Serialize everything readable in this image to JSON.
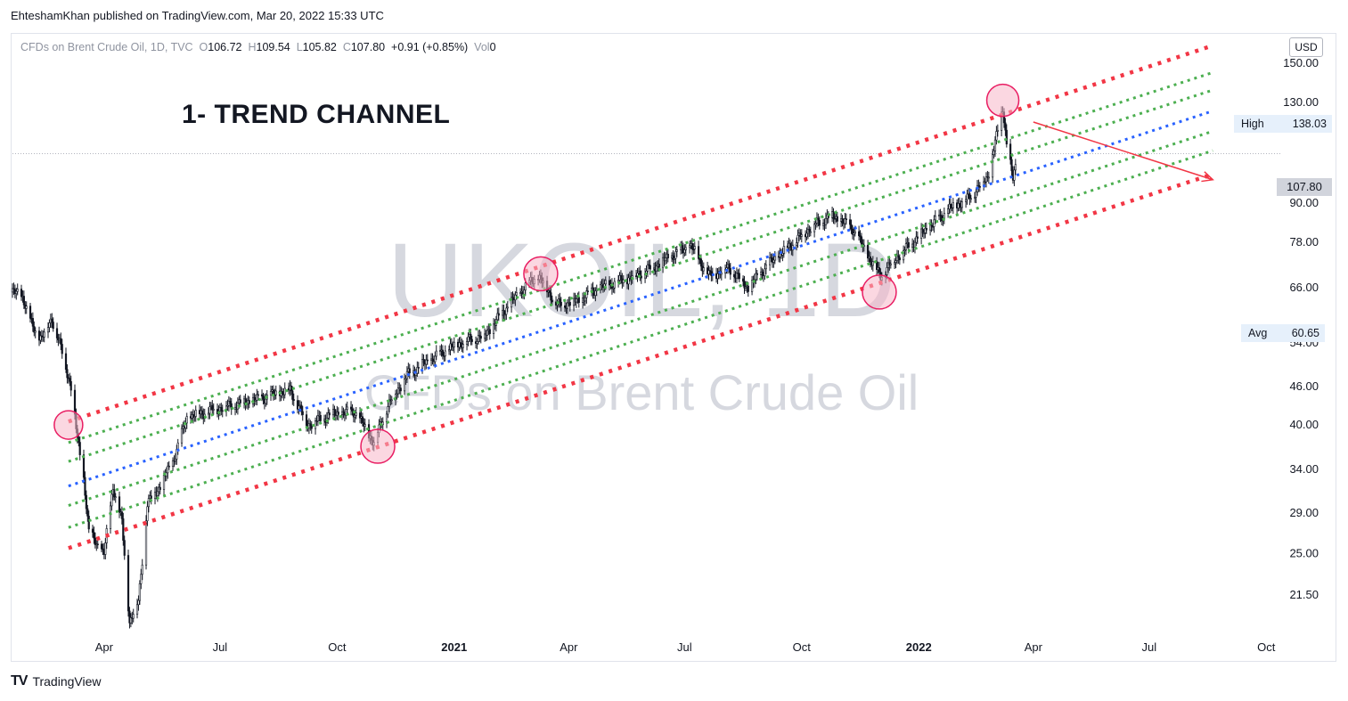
{
  "publisher": "EhteshamKhan published on TradingView.com, Mar 20, 2022 15:33 UTC",
  "legend": {
    "symbol": "CFDs on Brent Crude Oil, 1D, TVC",
    "open_label": "O",
    "open": "106.72",
    "high_label": "H",
    "high": "109.54",
    "low_label": "L",
    "low": "105.82",
    "close_label": "C",
    "close": "107.80",
    "change": "+0.91 (+0.85%)",
    "vol_label": "Vol",
    "vol": "0"
  },
  "annotation_title": "1- TREND CHANNEL",
  "watermark": {
    "line1": "UKOIL, 1D",
    "line2": "CFDs on Brent Crude Oil"
  },
  "currency": "USD",
  "price_tags": {
    "high_label": "High",
    "high_value": "138.03",
    "avg_label": "Avg",
    "avg_value": "60.65",
    "last_value": "107.80"
  },
  "footer": {
    "logo": "TV",
    "brand": "TradingView"
  },
  "colors": {
    "channel_outer": "#f23645",
    "channel_inner": "#4caf50",
    "channel_mid": "#2962ff",
    "candles": "#131722",
    "circle_fill": "#f7b6c8",
    "circle_stroke": "#e91e63",
    "arrow": "#f23645",
    "watermark": "#d1d4dc"
  },
  "chart_data": {
    "type": "candlestick",
    "title": "",
    "y_scale": "log",
    "ylim": [
      18.5,
      167
    ],
    "y_ticks": [
      {
        "value": 21.5,
        "label": "21.50"
      },
      {
        "value": 25,
        "label": "25.00"
      },
      {
        "value": 29,
        "label": "29.00"
      },
      {
        "value": 34,
        "label": "34.00"
      },
      {
        "value": 40,
        "label": "40.00"
      },
      {
        "value": 46,
        "label": "46.00"
      },
      {
        "value": 54,
        "label": "54.00"
      },
      {
        "value": 66,
        "label": "66.00"
      },
      {
        "value": 78,
        "label": "78.00"
      },
      {
        "value": 90,
        "label": "90.00"
      },
      {
        "value": 130,
        "label": "130.00"
      },
      {
        "value": 150,
        "label": "150.00"
      }
    ],
    "x_range": [
      "2020-01-20",
      "2022-10-12"
    ],
    "x_ticks": [
      {
        "date": "2020-04-01",
        "label": "Apr",
        "bold": false
      },
      {
        "date": "2020-07-01",
        "label": "Jul",
        "bold": false
      },
      {
        "date": "2020-10-01",
        "label": "Oct",
        "bold": false
      },
      {
        "date": "2021-01-01",
        "label": "2021",
        "bold": true
      },
      {
        "date": "2021-04-01",
        "label": "Apr",
        "bold": false
      },
      {
        "date": "2021-07-01",
        "label": "Jul",
        "bold": false
      },
      {
        "date": "2021-10-01",
        "label": "Oct",
        "bold": false
      },
      {
        "date": "2022-01-01",
        "label": "2022",
        "bold": true
      },
      {
        "date": "2022-04-01",
        "label": "Apr",
        "bold": false
      },
      {
        "date": "2022-07-01",
        "label": "Jul",
        "bold": false
      },
      {
        "date": "2022-10-01",
        "label": "Oct",
        "bold": false
      }
    ],
    "price_path": [
      [
        "2020-01-20",
        65
      ],
      [
        "2020-01-28",
        64
      ],
      [
        "2020-02-05",
        57
      ],
      [
        "2020-02-12",
        55
      ],
      [
        "2020-02-20",
        59
      ],
      [
        "2020-02-27",
        53
      ],
      [
        "2020-03-06",
        46
      ],
      [
        "2020-03-11",
        38
      ],
      [
        "2020-03-16",
        33
      ],
      [
        "2020-03-20",
        27
      ],
      [
        "2020-03-26",
        26
      ],
      [
        "2020-04-01",
        25
      ],
      [
        "2020-04-08",
        32
      ],
      [
        "2020-04-15",
        28
      ],
      [
        "2020-04-21",
        19.5
      ],
      [
        "2020-04-28",
        21
      ],
      [
        "2020-05-05",
        30
      ],
      [
        "2020-05-15",
        32
      ],
      [
        "2020-05-25",
        35
      ],
      [
        "2020-06-05",
        41
      ],
      [
        "2020-06-20",
        42
      ],
      [
        "2020-07-10",
        43
      ],
      [
        "2020-08-01",
        44
      ],
      [
        "2020-08-25",
        45.5
      ],
      [
        "2020-09-08",
        40
      ],
      [
        "2020-09-25",
        41.5
      ],
      [
        "2020-10-15",
        42
      ],
      [
        "2020-10-30",
        37.5
      ],
      [
        "2020-11-10",
        43
      ],
      [
        "2020-11-25",
        48
      ],
      [
        "2020-12-15",
        51
      ],
      [
        "2021-01-05",
        54
      ],
      [
        "2021-01-25",
        55.5
      ],
      [
        "2021-02-10",
        61
      ],
      [
        "2021-02-25",
        66
      ],
      [
        "2021-03-08",
        69
      ],
      [
        "2021-03-23",
        62
      ],
      [
        "2021-04-08",
        63
      ],
      [
        "2021-04-25",
        66
      ],
      [
        "2021-05-15",
        68
      ],
      [
        "2021-06-05",
        71
      ],
      [
        "2021-06-25",
        75
      ],
      [
        "2021-07-06",
        77
      ],
      [
        "2021-07-20",
        69
      ],
      [
        "2021-08-05",
        71
      ],
      [
        "2021-08-20",
        66
      ],
      [
        "2021-09-05",
        72
      ],
      [
        "2021-09-25",
        78
      ],
      [
        "2021-10-10",
        83
      ],
      [
        "2021-10-25",
        86
      ],
      [
        "2021-11-10",
        82
      ],
      [
        "2021-11-26",
        72
      ],
      [
        "2021-12-02",
        69
      ],
      [
        "2021-12-15",
        74
      ],
      [
        "2022-01-05",
        81
      ],
      [
        "2022-01-25",
        88
      ],
      [
        "2022-02-10",
        92
      ],
      [
        "2022-02-24",
        99
      ],
      [
        "2022-03-02",
        112
      ],
      [
        "2022-03-08",
        128
      ],
      [
        "2022-03-11",
        112
      ],
      [
        "2022-03-16",
        98
      ],
      [
        "2022-03-20",
        107.8
      ]
    ],
    "channel": {
      "start_date": "2020-03-04",
      "end_date": "2022-08-20",
      "lines": [
        {
          "role": "outer",
          "start": 40.5,
          "end": 160
        },
        {
          "role": "inner",
          "start": 37.5,
          "end": 145
        },
        {
          "role": "inner",
          "start": 35.0,
          "end": 136
        },
        {
          "role": "mid",
          "start": 32.0,
          "end": 126
        },
        {
          "role": "inner",
          "start": 29.8,
          "end": 117
        },
        {
          "role": "inner",
          "start": 27.5,
          "end": 109
        },
        {
          "role": "outer",
          "start": 25.5,
          "end": 100
        }
      ]
    },
    "touch_points": [
      {
        "date": "2020-03-04",
        "value": 40,
        "position": "top"
      },
      {
        "date": "2020-11-02",
        "value": 37,
        "position": "bottom"
      },
      {
        "date": "2021-03-10",
        "value": 69.5,
        "position": "top"
      },
      {
        "date": "2021-12-01",
        "value": 65,
        "position": "bottom"
      },
      {
        "date": "2022-03-08",
        "value": 131,
        "position": "top"
      }
    ],
    "arrow": {
      "from_date": "2022-04-01",
      "from_value": 121,
      "to_date": "2022-08-20",
      "to_value": 98
    },
    "reference_levels": {
      "last": 107.8,
      "high": 138.03,
      "avg": 60.65
    }
  }
}
